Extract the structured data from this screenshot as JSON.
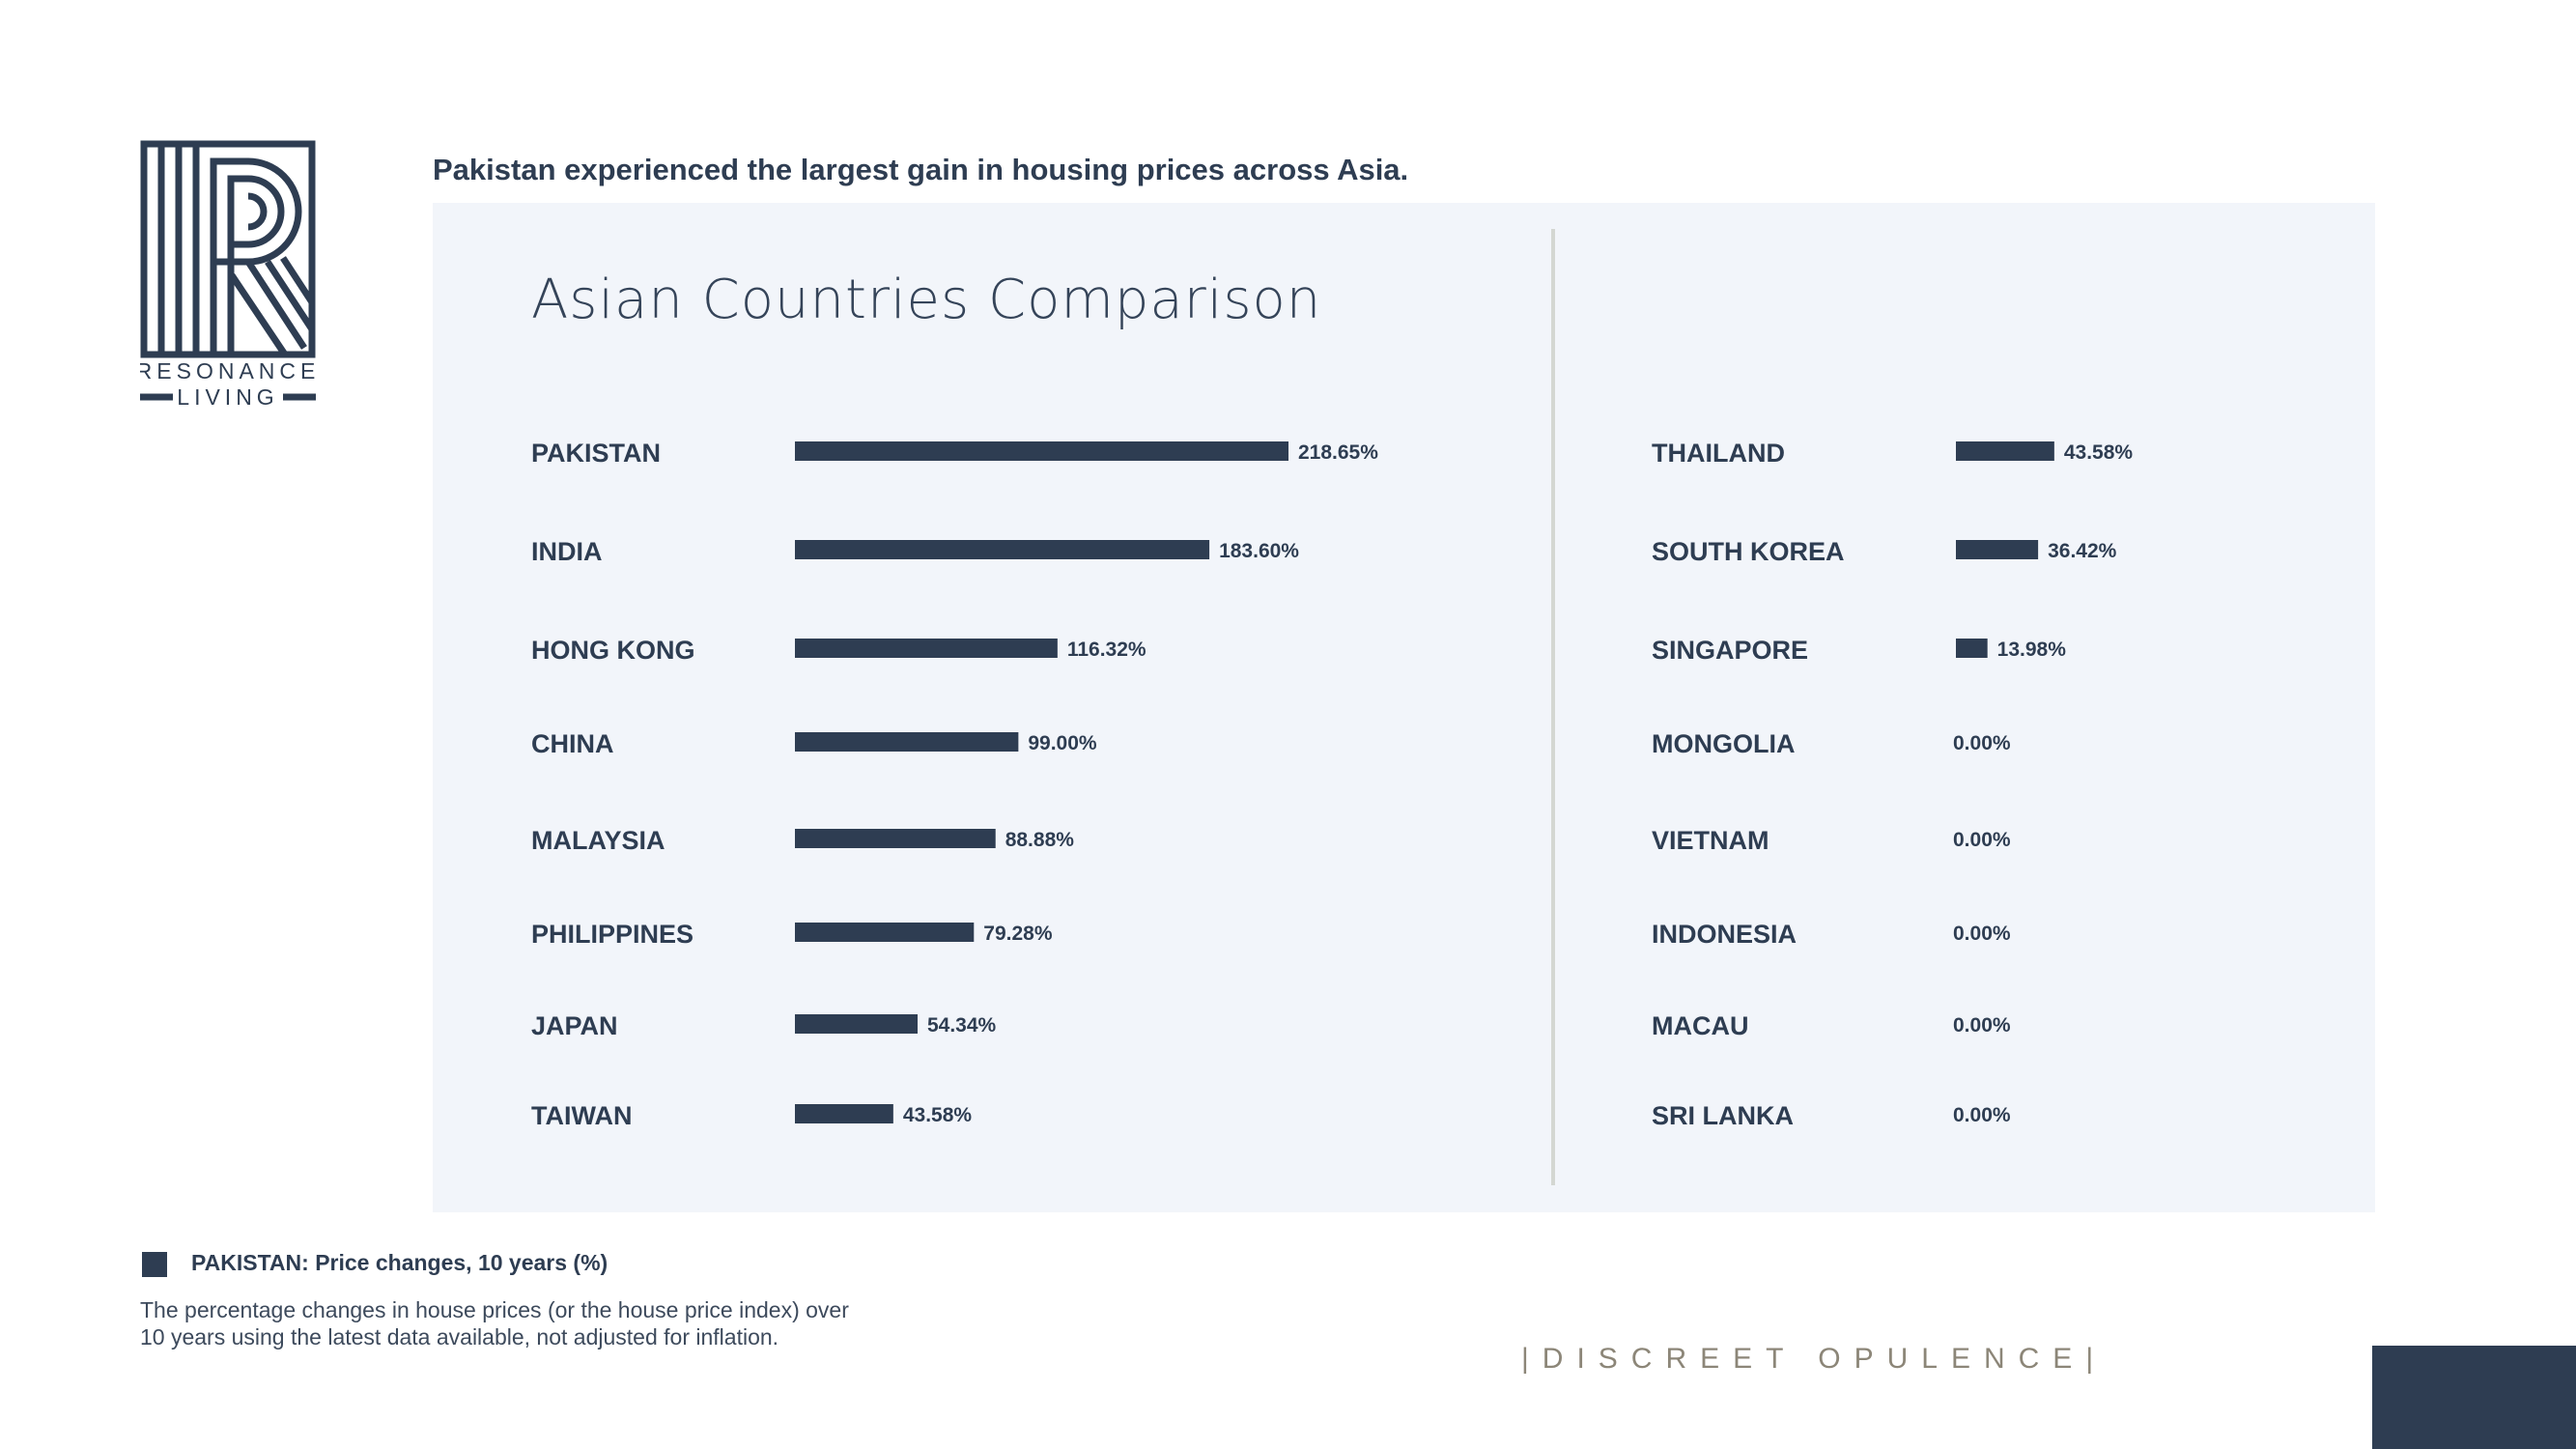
{
  "logo": {
    "line1": "RESONANCE",
    "line2": "LIVING"
  },
  "headline": "Pakistan experienced the largest gain in housing prices across Asia.",
  "chart_data": {
    "type": "bar",
    "orientation": "horizontal",
    "title": "Asian Countries Comparison",
    "bar_color": "#2e3d52",
    "columns": [
      {
        "categories": [
          "PAKISTAN",
          "INDIA",
          "HONG KONG",
          "CHINA",
          "MALAYSIA",
          "PHILIPPINES",
          "JAPAN",
          "TAIWAN"
        ],
        "values": [
          218.65,
          183.6,
          116.32,
          99.0,
          88.88,
          79.28,
          54.34,
          43.58
        ],
        "labels": [
          "218.65%",
          "183.60%",
          "116.32%",
          "99.00%",
          "88.88%",
          "79.28%",
          "54.34%",
          "43.58%"
        ]
      },
      {
        "categories": [
          "THAILAND",
          "SOUTH KOREA",
          "SINGAPORE",
          "MONGOLIA",
          "VIETNAM",
          "INDONESIA",
          "MACAU",
          "SRI LANKA"
        ],
        "values": [
          43.58,
          36.42,
          13.98,
          0.0,
          0.0,
          0.0,
          0.0,
          0.0
        ],
        "labels": [
          "43.58%",
          "36.42%",
          "13.98%",
          "0.00%",
          "0.00%",
          "0.00%",
          "0.00%",
          "0.00%"
        ]
      }
    ]
  },
  "legend": {
    "label": "PAKISTAN: Price changes, 10 years (%)"
  },
  "note": "The percentage changes in house prices (or the house price index) over\n10 years using the latest data available, not adjusted for inflation.",
  "tagline": "|DISCREET OPULENCE|"
}
